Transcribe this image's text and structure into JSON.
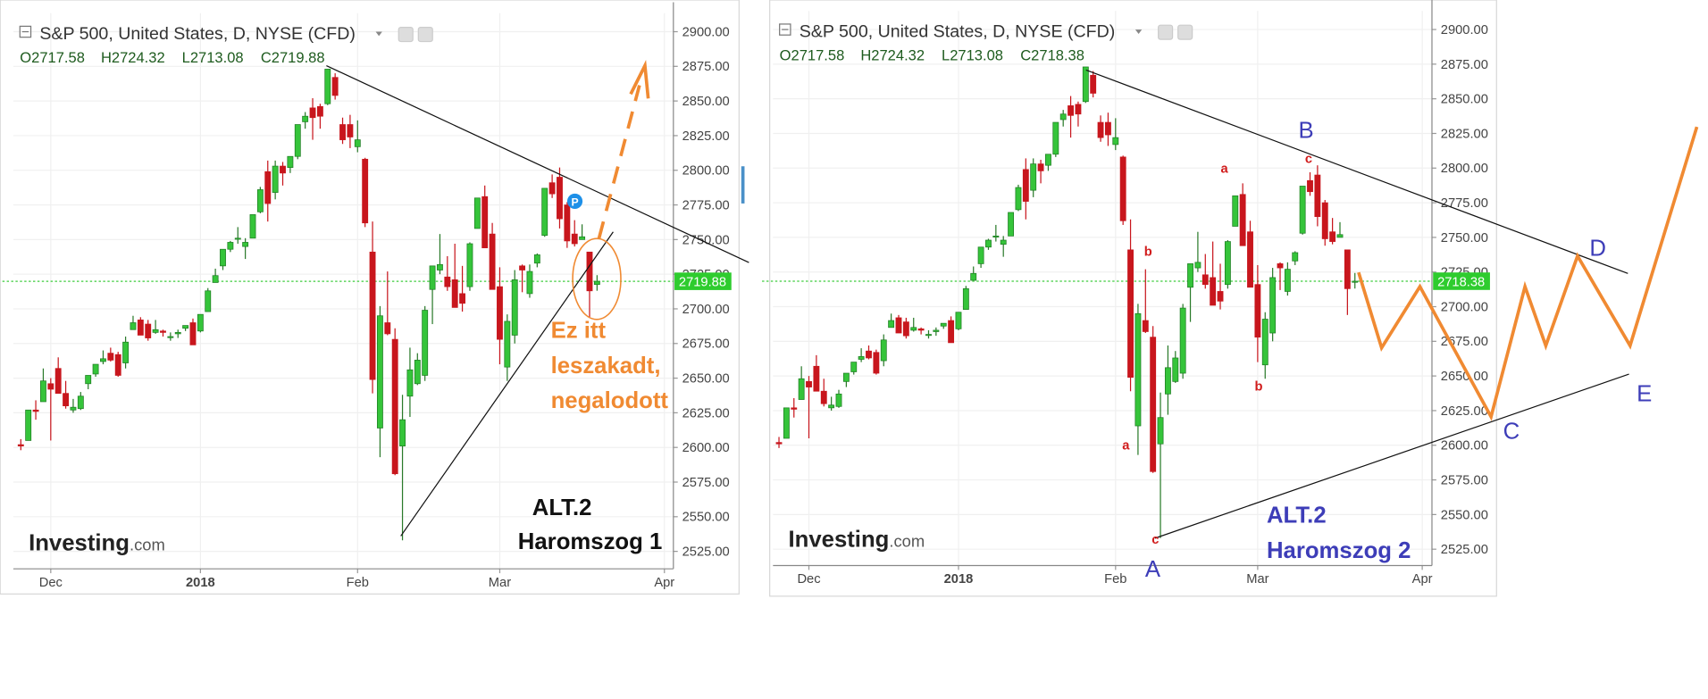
{
  "chart_data": [
    {
      "type": "candlestick",
      "title": "S&P 500, United States, D, NYSE (CFD)",
      "ohlc_header": [
        "O2717.58",
        "H2724.32",
        "L2713.08",
        "C2719.88"
      ],
      "last_price": 2719.88,
      "watermark": [
        "Investing",
        ".com"
      ],
      "up_color": "#35c43a",
      "down_color": "#c8161d",
      "grid": true,
      "xlim": [
        -1,
        87.2
      ],
      "ylim": [
        2512.4,
        2913.4
      ],
      "xticks": [
        {
          "value": 4,
          "label": "Dec"
        },
        {
          "value": 24,
          "label": "2018"
        },
        {
          "value": 45,
          "label": "Feb"
        },
        {
          "value": 64,
          "label": "Mar"
        },
        {
          "value": 86,
          "label": "Apr"
        }
      ],
      "yticks": [
        {
          "value": 2525,
          "label": "2525.00"
        },
        {
          "value": 2550,
          "label": "2550.00"
        },
        {
          "value": 2575,
          "label": "2575.00"
        },
        {
          "value": 2600,
          "label": "2600.00"
        },
        {
          "value": 2625,
          "label": "2625.00"
        },
        {
          "value": 2650,
          "label": "2650.00"
        },
        {
          "value": 2675,
          "label": "2675.00"
        },
        {
          "value": 2700,
          "label": "2700.00"
        },
        {
          "value": 2725,
          "label": "2725.00"
        },
        {
          "value": 2750,
          "label": "2750.00"
        },
        {
          "value": 2775,
          "label": "2775.00"
        },
        {
          "value": 2800,
          "label": "2800.00"
        },
        {
          "value": 2825,
          "label": "2825.00"
        },
        {
          "value": 2850,
          "label": "2850.00"
        },
        {
          "value": 2875,
          "label": "2875.00"
        },
        {
          "value": 2900,
          "label": "2900.00"
        }
      ],
      "open": [
        2602,
        2605,
        2627,
        2633,
        2646,
        2657,
        2639,
        2627,
        2628,
        2646,
        2653,
        2662,
        2668,
        2667,
        2661,
        2685,
        2692,
        2689,
        2683,
        2684,
        2680,
        2682,
        2686,
        2690,
        2684,
        2698,
        2719,
        2731,
        2743,
        2751,
        2745,
        2751,
        2770,
        2799,
        2784,
        2803,
        2802,
        2810,
        2835,
        2845,
        2846,
        2848,
        2867,
        2833,
        2833,
        2817,
        2808,
        2741,
        2614,
        2690,
        2678,
        2601,
        2637,
        2646,
        2652,
        2714,
        2728,
        2723,
        2721,
        2711,
        2716,
        2758,
        2781,
        2754,
        2716,
        2658,
        2681,
        2731,
        2711,
        2733,
        2753,
        2791,
        2795,
        2775,
        2754,
        2750,
        2741,
        2717.58
      ],
      "high": [
        2606,
        2627,
        2634,
        2657,
        2650,
        2665,
        2648,
        2635,
        2640,
        2652,
        2660,
        2670,
        2672,
        2669,
        2680,
        2695,
        2694,
        2692,
        2692,
        2685,
        2683,
        2685,
        2688,
        2693,
        2696,
        2715,
        2729,
        2743,
        2749,
        2759,
        2751,
        2768,
        2788,
        2807,
        2807,
        2806,
        2810,
        2833,
        2842,
        2852,
        2848,
        2873,
        2870,
        2838,
        2840,
        2836,
        2809,
        2763,
        2702,
        2727,
        2686,
        2638,
        2672,
        2668,
        2702,
        2731,
        2754,
        2738,
        2747,
        2731,
        2748,
        2780,
        2789,
        2762,
        2730,
        2696,
        2728,
        2732,
        2732,
        2740,
        2787,
        2797,
        2802,
        2777,
        2764,
        2761,
        2741,
        2724.32
      ],
      "low": [
        2598,
        2605,
        2620,
        2633,
        2605,
        2639,
        2628,
        2625,
        2627,
        2642,
        2651,
        2660,
        2662,
        2651,
        2657,
        2685,
        2681,
        2677,
        2682,
        2680,
        2677,
        2679,
        2684,
        2674,
        2683,
        2698,
        2719,
        2728,
        2741,
        2747,
        2736,
        2751,
        2769,
        2763,
        2779,
        2789,
        2798,
        2808,
        2830,
        2822,
        2830,
        2847,
        2851,
        2819,
        2816,
        2813,
        2759,
        2639,
        2593,
        2681,
        2580,
        2533,
        2622,
        2645,
        2648,
        2689,
        2725,
        2713,
        2701,
        2698,
        2713,
        2758,
        2744,
        2714,
        2660,
        2648,
        2675,
        2712,
        2708,
        2730,
        2752,
        2780,
        2758,
        2744,
        2745,
        2750,
        2694,
        2713.08
      ],
      "close": [
        2601,
        2627,
        2626,
        2648,
        2642,
        2639,
        2630,
        2629,
        2637,
        2652,
        2660,
        2664,
        2663,
        2652,
        2676,
        2690,
        2681,
        2679,
        2685,
        2683,
        2680,
        2683,
        2688,
        2674,
        2696,
        2713,
        2724,
        2743,
        2748,
        2751,
        2748,
        2768,
        2786,
        2776,
        2803,
        2798,
        2810,
        2833,
        2839,
        2838,
        2839,
        2873,
        2854,
        2822,
        2824,
        2822,
        2762,
        2649,
        2695,
        2682,
        2581,
        2620,
        2656,
        2663,
        2699,
        2731,
        2732,
        2716,
        2701,
        2704,
        2747,
        2780,
        2744,
        2714,
        2678,
        2691,
        2721,
        2728,
        2727,
        2739,
        2787,
        2783,
        2765,
        2749,
        2747,
        2752,
        2713,
        2719.88
      ],
      "annotations": [
        "Ez itt",
        "leszakadt,",
        "negalodott",
        "ALT.2",
        "Haromszog 1",
        "P"
      ]
    },
    {
      "type": "candlestick",
      "title": "S&P 500, United States, D, NYSE (CFD)",
      "ohlc_header": [
        "O2717.58",
        "H2724.32",
        "L2713.08",
        "C2718.38"
      ],
      "last_price": 2718.38,
      "watermark": [
        "Investing",
        ".com"
      ],
      "up_color": "#35c43a",
      "down_color": "#c8161d",
      "grid": true,
      "xlim": [
        -0.8,
        87.3
      ],
      "ylim": [
        2513.2,
        2913.4
      ],
      "xticks": [
        {
          "value": 4,
          "label": "Dec"
        },
        {
          "value": 24,
          "label": "2018"
        },
        {
          "value": 45,
          "label": "Feb"
        },
        {
          "value": 64,
          "label": "Mar"
        },
        {
          "value": 86,
          "label": "Apr"
        }
      ],
      "yticks": [
        {
          "value": 2525,
          "label": "2525.00"
        },
        {
          "value": 2550,
          "label": "2550.00"
        },
        {
          "value": 2575,
          "label": "2575.00"
        },
        {
          "value": 2600,
          "label": "2600.00"
        },
        {
          "value": 2625,
          "label": "2625.00"
        },
        {
          "value": 2650,
          "label": "2650.00"
        },
        {
          "value": 2675,
          "label": "2675.00"
        },
        {
          "value": 2700,
          "label": "2700.00"
        },
        {
          "value": 2725,
          "label": "2725.00"
        },
        {
          "value": 2750,
          "label": "2750.00"
        },
        {
          "value": 2775,
          "label": "2775.00"
        },
        {
          "value": 2800,
          "label": "2800.00"
        },
        {
          "value": 2825,
          "label": "2825.00"
        },
        {
          "value": 2850,
          "label": "2850.00"
        },
        {
          "value": 2875,
          "label": "2875.00"
        },
        {
          "value": 2900,
          "label": "2900.00"
        }
      ],
      "open": [
        2602,
        2605,
        2627,
        2633,
        2646,
        2657,
        2639,
        2627,
        2628,
        2646,
        2653,
        2662,
        2668,
        2667,
        2661,
        2685,
        2692,
        2689,
        2683,
        2684,
        2680,
        2682,
        2686,
        2690,
        2684,
        2698,
        2719,
        2731,
        2743,
        2751,
        2745,
        2751,
        2770,
        2799,
        2784,
        2803,
        2802,
        2810,
        2835,
        2845,
        2846,
        2848,
        2867,
        2833,
        2833,
        2817,
        2808,
        2741,
        2614,
        2690,
        2678,
        2601,
        2637,
        2646,
        2652,
        2714,
        2728,
        2723,
        2721,
        2711,
        2716,
        2758,
        2781,
        2754,
        2716,
        2658,
        2681,
        2731,
        2711,
        2733,
        2753,
        2791,
        2795,
        2775,
        2754,
        2750,
        2741,
        2717.58
      ],
      "high": [
        2606,
        2627,
        2634,
        2657,
        2650,
        2665,
        2648,
        2635,
        2640,
        2652,
        2660,
        2670,
        2672,
        2669,
        2680,
        2695,
        2694,
        2692,
        2692,
        2685,
        2683,
        2685,
        2688,
        2693,
        2696,
        2715,
        2729,
        2743,
        2749,
        2759,
        2751,
        2768,
        2788,
        2807,
        2807,
        2806,
        2810,
        2833,
        2842,
        2852,
        2848,
        2873,
        2870,
        2838,
        2840,
        2836,
        2809,
        2763,
        2702,
        2727,
        2686,
        2638,
        2672,
        2668,
        2702,
        2731,
        2754,
        2738,
        2747,
        2731,
        2748,
        2780,
        2789,
        2762,
        2730,
        2696,
        2728,
        2732,
        2732,
        2740,
        2787,
        2797,
        2802,
        2777,
        2764,
        2761,
        2741,
        2724.32
      ],
      "low": [
        2598,
        2605,
        2620,
        2633,
        2605,
        2639,
        2628,
        2625,
        2627,
        2642,
        2651,
        2660,
        2662,
        2651,
        2657,
        2685,
        2681,
        2677,
        2682,
        2680,
        2677,
        2679,
        2684,
        2674,
        2683,
        2698,
        2719,
        2728,
        2741,
        2747,
        2736,
        2751,
        2769,
        2763,
        2779,
        2789,
        2798,
        2808,
        2830,
        2822,
        2830,
        2847,
        2851,
        2819,
        2816,
        2813,
        2759,
        2639,
        2593,
        2681,
        2580,
        2533,
        2622,
        2645,
        2648,
        2689,
        2725,
        2713,
        2701,
        2698,
        2713,
        2758,
        2744,
        2714,
        2660,
        2648,
        2675,
        2712,
        2708,
        2730,
        2752,
        2780,
        2758,
        2744,
        2745,
        2750,
        2694,
        2713.08
      ],
      "close": [
        2601,
        2627,
        2626,
        2648,
        2642,
        2639,
        2630,
        2629,
        2637,
        2652,
        2660,
        2664,
        2663,
        2652,
        2676,
        2690,
        2681,
        2679,
        2685,
        2683,
        2680,
        2683,
        2688,
        2674,
        2696,
        2713,
        2724,
        2743,
        2748,
        2751,
        2748,
        2768,
        2786,
        2776,
        2803,
        2798,
        2810,
        2833,
        2839,
        2838,
        2839,
        2873,
        2854,
        2822,
        2824,
        2822,
        2762,
        2649,
        2695,
        2682,
        2581,
        2620,
        2656,
        2663,
        2699,
        2731,
        2732,
        2716,
        2701,
        2704,
        2747,
        2780,
        2744,
        2714,
        2678,
        2691,
        2721,
        2728,
        2727,
        2739,
        2787,
        2783,
        2765,
        2749,
        2747,
        2752,
        2713,
        2718.38
      ],
      "annotations": [
        "B",
        "D",
        "C",
        "E",
        "A",
        "ALT.2",
        "Haromszog 2",
        "a",
        "c",
        "b",
        "b",
        "a",
        "c"
      ]
    }
  ]
}
